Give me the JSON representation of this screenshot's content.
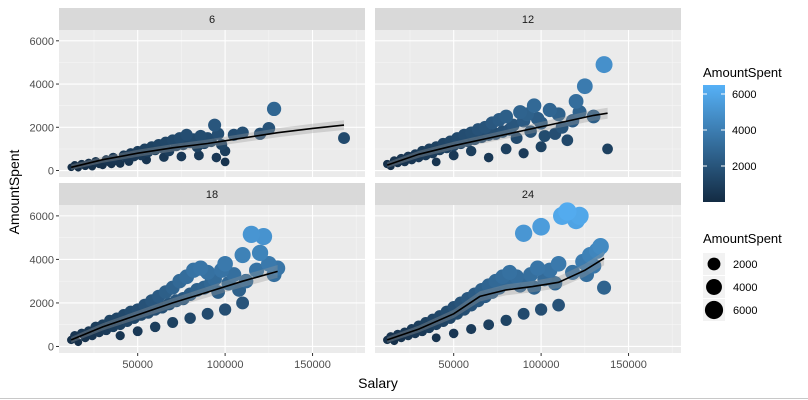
{
  "chart_data": {
    "type": "scatter",
    "xlabel": "Salary",
    "ylabel": "AmountSpent",
    "xlim": [
      5000,
      180000
    ],
    "ylim": [
      -300,
      6500
    ],
    "x_ticks": [
      50000,
      100000,
      150000
    ],
    "x_tick_labels": [
      "50000",
      "100000",
      "150000"
    ],
    "y_ticks": [
      0,
      2000,
      4000,
      6000
    ],
    "y_tick_labels": [
      "0",
      "2000",
      "4000",
      "6000"
    ],
    "grid": true,
    "facet_variable_values": [
      "6",
      "12",
      "18",
      "24"
    ],
    "color_legend": {
      "title": "AmountSpent",
      "range": [
        0,
        6500
      ],
      "breaks": [
        2000,
        4000,
        6000
      ],
      "break_labels": [
        "2000",
        "4000",
        "6000"
      ],
      "low_color": "#132B43",
      "high_color": "#56B1F7",
      "placement": "right"
    },
    "size_legend": {
      "title": "AmountSpent",
      "breaks": [
        2000,
        4000,
        6000
      ],
      "break_labels": [
        "2000",
        "4000",
        "6000"
      ],
      "placement": "right"
    },
    "panels": [
      {
        "label": "6",
        "points": [
          [
            12000,
            150
          ],
          [
            14000,
            250
          ],
          [
            16000,
            120
          ],
          [
            18000,
            300
          ],
          [
            20000,
            200
          ],
          [
            22000,
            350
          ],
          [
            24000,
            180
          ],
          [
            26000,
            420
          ],
          [
            28000,
            300
          ],
          [
            30000,
            250
          ],
          [
            32000,
            500
          ],
          [
            34000,
            380
          ],
          [
            36000,
            600
          ],
          [
            38000,
            450
          ],
          [
            40000,
            320
          ],
          [
            42000,
            700
          ],
          [
            44000,
            550
          ],
          [
            46000,
            800
          ],
          [
            48000,
            650
          ],
          [
            50000,
            900
          ],
          [
            52000,
            700
          ],
          [
            54000,
            1000
          ],
          [
            56000,
            850
          ],
          [
            58000,
            1100
          ],
          [
            60000,
            950
          ],
          [
            62000,
            1200
          ],
          [
            64000,
            1050
          ],
          [
            66000,
            1300
          ],
          [
            68000,
            900
          ],
          [
            70000,
            1400
          ],
          [
            72000,
            1150
          ],
          [
            74000,
            1500
          ],
          [
            76000,
            1200
          ],
          [
            78000,
            1650
          ],
          [
            80000,
            1300
          ],
          [
            82000,
            1450
          ],
          [
            84000,
            1100
          ],
          [
            86000,
            1600
          ],
          [
            88000,
            1250
          ],
          [
            90000,
            1500
          ],
          [
            92000,
            1350
          ],
          [
            94000,
            2100
          ],
          [
            96000,
            1700
          ],
          [
            98000,
            1200
          ],
          [
            100000,
            900
          ],
          [
            105000,
            1650
          ],
          [
            110000,
            1750
          ],
          [
            120000,
            1700
          ],
          [
            125000,
            1950
          ],
          [
            128000,
            2850
          ],
          [
            168000,
            1500
          ],
          [
            35000,
            300
          ],
          [
            45000,
            420
          ],
          [
            55000,
            500
          ],
          [
            65000,
            620
          ],
          [
            75000,
            650
          ],
          [
            85000,
            700
          ],
          [
            95000,
            600
          ],
          [
            100000,
            400
          ]
        ],
        "smooth": [
          [
            12000,
            150
          ],
          [
            30000,
            500
          ],
          [
            50000,
            800
          ],
          [
            70000,
            1050
          ],
          [
            90000,
            1250
          ],
          [
            110000,
            1500
          ],
          [
            130000,
            1750
          ],
          [
            150000,
            1950
          ],
          [
            168000,
            2100
          ]
        ]
      },
      {
        "label": "12",
        "points": [
          [
            12000,
            300
          ],
          [
            14000,
            200
          ],
          [
            16000,
            450
          ],
          [
            18000,
            350
          ],
          [
            20000,
            550
          ],
          [
            22000,
            400
          ],
          [
            24000,
            650
          ],
          [
            26000,
            500
          ],
          [
            28000,
            750
          ],
          [
            30000,
            600
          ],
          [
            32000,
            900
          ],
          [
            34000,
            700
          ],
          [
            36000,
            1000
          ],
          [
            38000,
            800
          ],
          [
            40000,
            1100
          ],
          [
            42000,
            950
          ],
          [
            44000,
            1250
          ],
          [
            46000,
            1050
          ],
          [
            48000,
            1350
          ],
          [
            50000,
            1150
          ],
          [
            52000,
            1500
          ],
          [
            54000,
            1250
          ],
          [
            56000,
            1650
          ],
          [
            58000,
            1350
          ],
          [
            60000,
            1750
          ],
          [
            62000,
            1450
          ],
          [
            64000,
            1900
          ],
          [
            66000,
            1550
          ],
          [
            68000,
            2000
          ],
          [
            70000,
            1650
          ],
          [
            72000,
            2200
          ],
          [
            74000,
            1700
          ],
          [
            76000,
            2350
          ],
          [
            78000,
            1800
          ],
          [
            80000,
            2500
          ],
          [
            82000,
            1900
          ],
          [
            84000,
            2100
          ],
          [
            86000,
            1500
          ],
          [
            88000,
            2700
          ],
          [
            90000,
            2300
          ],
          [
            92000,
            2600
          ],
          [
            94000,
            1800
          ],
          [
            96000,
            3000
          ],
          [
            98000,
            2400
          ],
          [
            100000,
            2200
          ],
          [
            102000,
            1600
          ],
          [
            105000,
            2800
          ],
          [
            108000,
            1700
          ],
          [
            110000,
            2600
          ],
          [
            112000,
            2000
          ],
          [
            115000,
            1400
          ],
          [
            118000,
            2300
          ],
          [
            120000,
            3200
          ],
          [
            122000,
            2700
          ],
          [
            125000,
            3900
          ],
          [
            130000,
            2500
          ],
          [
            136000,
            4900
          ],
          [
            138000,
            1000
          ],
          [
            40000,
            400
          ],
          [
            50000,
            700
          ],
          [
            60000,
            900
          ],
          [
            70000,
            600
          ],
          [
            80000,
            1000
          ],
          [
            90000,
            800
          ],
          [
            100000,
            1100
          ]
        ],
        "smooth": [
          [
            12000,
            250
          ],
          [
            30000,
            750
          ],
          [
            50000,
            1150
          ],
          [
            70000,
            1500
          ],
          [
            90000,
            1850
          ],
          [
            110000,
            2200
          ],
          [
            130000,
            2550
          ],
          [
            138000,
            2650
          ]
        ]
      },
      {
        "label": "18",
        "points": [
          [
            12000,
            300
          ],
          [
            14000,
            500
          ],
          [
            16000,
            200
          ],
          [
            18000,
            600
          ],
          [
            20000,
            400
          ],
          [
            22000,
            700
          ],
          [
            24000,
            500
          ],
          [
            26000,
            900
          ],
          [
            28000,
            650
          ],
          [
            30000,
            1000
          ],
          [
            32000,
            750
          ],
          [
            34000,
            1200
          ],
          [
            36000,
            900
          ],
          [
            38000,
            1300
          ],
          [
            40000,
            1000
          ],
          [
            42000,
            1450
          ],
          [
            44000,
            1150
          ],
          [
            46000,
            1600
          ],
          [
            48000,
            1300
          ],
          [
            50000,
            1700
          ],
          [
            52000,
            1450
          ],
          [
            54000,
            1900
          ],
          [
            56000,
            1550
          ],
          [
            58000,
            2100
          ],
          [
            60000,
            1700
          ],
          [
            62000,
            2300
          ],
          [
            64000,
            1800
          ],
          [
            66000,
            2500
          ],
          [
            68000,
            1950
          ],
          [
            70000,
            2700
          ],
          [
            72000,
            2100
          ],
          [
            74000,
            3000
          ],
          [
            76000,
            2200
          ],
          [
            78000,
            3200
          ],
          [
            80000,
            2400
          ],
          [
            82000,
            3500
          ],
          [
            84000,
            2600
          ],
          [
            86000,
            3600
          ],
          [
            88000,
            2700
          ],
          [
            90000,
            3400
          ],
          [
            92000,
            2900
          ],
          [
            94000,
            3100
          ],
          [
            96000,
            2500
          ],
          [
            98000,
            3500
          ],
          [
            100000,
            3800
          ],
          [
            102000,
            2900
          ],
          [
            105000,
            3300
          ],
          [
            108000,
            2600
          ],
          [
            110000,
            4200
          ],
          [
            112000,
            3000
          ],
          [
            115000,
            5150
          ],
          [
            118000,
            3500
          ],
          [
            120000,
            4300
          ],
          [
            122000,
            5050
          ],
          [
            125000,
            3800
          ],
          [
            128000,
            3300
          ],
          [
            130000,
            3600
          ],
          [
            40000,
            500
          ],
          [
            50000,
            700
          ],
          [
            60000,
            900
          ],
          [
            70000,
            1100
          ],
          [
            80000,
            1300
          ],
          [
            90000,
            1500
          ],
          [
            100000,
            1700
          ],
          [
            110000,
            2000
          ]
        ],
        "smooth": [
          [
            12000,
            300
          ],
          [
            30000,
            900
          ],
          [
            50000,
            1450
          ],
          [
            70000,
            2000
          ],
          [
            90000,
            2500
          ],
          [
            110000,
            3000
          ],
          [
            130000,
            3450
          ]
        ]
      },
      {
        "label": "24",
        "points": [
          [
            12000,
            300
          ],
          [
            14000,
            450
          ],
          [
            16000,
            250
          ],
          [
            18000,
            550
          ],
          [
            20000,
            400
          ],
          [
            22000,
            650
          ],
          [
            24000,
            500
          ],
          [
            26000,
            800
          ],
          [
            28000,
            600
          ],
          [
            30000,
            950
          ],
          [
            32000,
            700
          ],
          [
            34000,
            1100
          ],
          [
            36000,
            850
          ],
          [
            38000,
            1250
          ],
          [
            40000,
            1000
          ],
          [
            42000,
            1400
          ],
          [
            44000,
            1150
          ],
          [
            46000,
            1600
          ],
          [
            48000,
            1300
          ],
          [
            50000,
            1800
          ],
          [
            52000,
            1500
          ],
          [
            54000,
            2000
          ],
          [
            56000,
            1700
          ],
          [
            58000,
            2200
          ],
          [
            60000,
            1900
          ],
          [
            62000,
            2400
          ],
          [
            64000,
            2100
          ],
          [
            66000,
            2600
          ],
          [
            68000,
            2300
          ],
          [
            70000,
            2800
          ],
          [
            72000,
            2500
          ],
          [
            74000,
            3000
          ],
          [
            76000,
            2700
          ],
          [
            78000,
            3200
          ],
          [
            80000,
            2900
          ],
          [
            82000,
            3400
          ],
          [
            84000,
            3000
          ],
          [
            86000,
            3200
          ],
          [
            88000,
            2800
          ],
          [
            90000,
            5200
          ],
          [
            92000,
            3000
          ],
          [
            94000,
            3300
          ],
          [
            96000,
            2700
          ],
          [
            98000,
            3600
          ],
          [
            100000,
            5500
          ],
          [
            102000,
            3100
          ],
          [
            105000,
            3500
          ],
          [
            108000,
            2900
          ],
          [
            110000,
            3800
          ],
          [
            112000,
            6000
          ],
          [
            115000,
            6200
          ],
          [
            118000,
            3400
          ],
          [
            120000,
            5800
          ],
          [
            122000,
            6000
          ],
          [
            124000,
            3900
          ],
          [
            126000,
            3300
          ],
          [
            128000,
            4200
          ],
          [
            130000,
            3700
          ],
          [
            132000,
            4400
          ],
          [
            134000,
            4600
          ],
          [
            136000,
            2700
          ],
          [
            40000,
            400
          ],
          [
            50000,
            600
          ],
          [
            60000,
            800
          ],
          [
            70000,
            1000
          ],
          [
            80000,
            1200
          ],
          [
            90000,
            1500
          ],
          [
            100000,
            1700
          ],
          [
            110000,
            1900
          ]
        ],
        "smooth": [
          [
            12000,
            300
          ],
          [
            30000,
            800
          ],
          [
            50000,
            1500
          ],
          [
            65000,
            2300
          ],
          [
            80000,
            2600
          ],
          [
            95000,
            2750
          ],
          [
            110000,
            2950
          ],
          [
            125000,
            3500
          ],
          [
            136000,
            4050
          ]
        ]
      }
    ]
  }
}
